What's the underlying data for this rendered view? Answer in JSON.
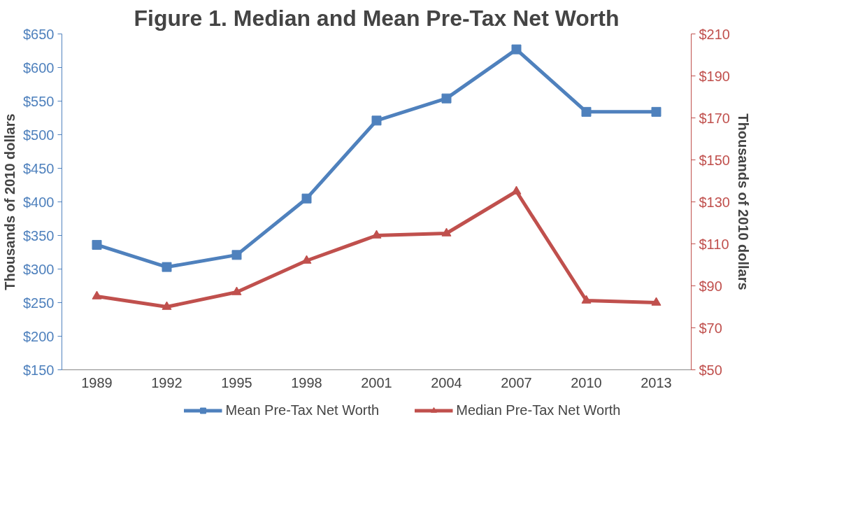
{
  "chart_data": {
    "type": "line",
    "title": "Figure 1. Median and Mean Pre-Tax Net Worth",
    "ylabel": "Thousands of 2010 dollars",
    "y2label": "Thousands of 2010 dollars",
    "categories": [
      "1989",
      "1992",
      "1995",
      "1998",
      "2001",
      "2004",
      "2007",
      "2010",
      "2013"
    ],
    "series": [
      {
        "name": "Mean Pre-Tax Net Worth",
        "color": "#4f81bd",
        "marker": "square",
        "values": [
          336,
          303,
          321,
          405,
          521,
          554,
          627,
          534,
          534
        ]
      },
      {
        "name": "Median Pre-Tax Net Worth",
        "color": "#c0504d",
        "marker": "triangle",
        "axis": "y2",
        "values": [
          85,
          80,
          87,
          102,
          114,
          115,
          135,
          83,
          82
        ]
      }
    ],
    "ylim": [
      150,
      650
    ],
    "yticks": [
      {
        "value": 150,
        "label": "$150"
      },
      {
        "value": 200,
        "label": "$200"
      },
      {
        "value": 250,
        "label": "$250"
      },
      {
        "value": 300,
        "label": "$300"
      },
      {
        "value": 350,
        "label": "$350"
      },
      {
        "value": 400,
        "label": "$400"
      },
      {
        "value": 450,
        "label": "$450"
      },
      {
        "value": 500,
        "label": "$500"
      },
      {
        "value": 550,
        "label": "$550"
      },
      {
        "value": 600,
        "label": "$600"
      },
      {
        "value": 650,
        "label": "$650"
      }
    ],
    "y2lim": [
      50,
      210
    ],
    "y2ticks": [
      {
        "value": 50,
        "label": "$50"
      },
      {
        "value": 70,
        "label": "$70"
      },
      {
        "value": 90,
        "label": "$90"
      },
      {
        "value": 110,
        "label": "$110"
      },
      {
        "value": 130,
        "label": "$130"
      },
      {
        "value": 150,
        "label": "$150"
      },
      {
        "value": 170,
        "label": "$170"
      },
      {
        "value": 190,
        "label": "$190"
      },
      {
        "value": 210,
        "label": "$210"
      }
    ],
    "grid": false,
    "legend": "bottom"
  }
}
